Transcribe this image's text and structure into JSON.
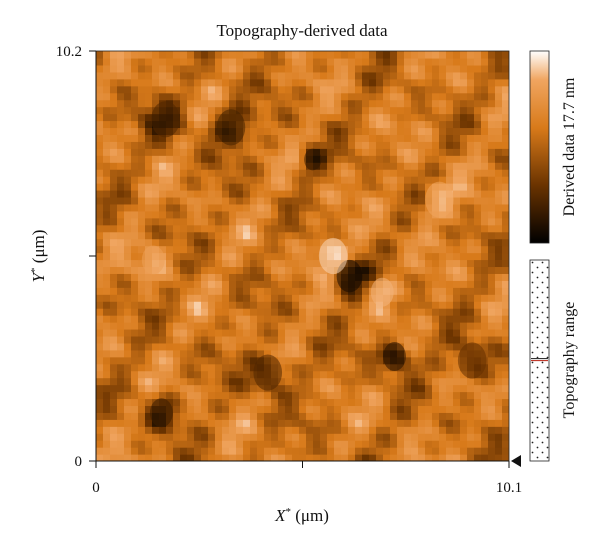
{
  "chart_data": {
    "type": "heatmap",
    "title": "Topography-derived data",
    "xlabel": {
      "main": "X",
      "sup": "*",
      "unit": " (μm)"
    },
    "ylabel": {
      "main": "Y",
      "sup": "*",
      "unit": " (μm)"
    },
    "xlim": [
      0,
      10.1
    ],
    "ylim": [
      0,
      10.2
    ],
    "x_ticks": [
      "0",
      "10.1"
    ],
    "y_ticks": [
      "0",
      "10.2"
    ],
    "colorbar": {
      "label": "Derived data 17.7 nm",
      "min": 0,
      "max": 17.7,
      "unit": "nm",
      "colors": [
        "#000000",
        "#6a3300",
        "#d87a1a",
        "#f0a560",
        "#ffffff"
      ]
    },
    "range_bar": {
      "label": "Topography range",
      "marker_fraction": 0.44,
      "marker_color": "#c0392b"
    },
    "features": [
      {
        "x": 6.2,
        "y": 4.6,
        "value": 1.0,
        "r": 0.45
      },
      {
        "x": 7.3,
        "y": 2.6,
        "value": 2.0,
        "r": 0.4
      },
      {
        "x": 5.3,
        "y": 7.5,
        "value": 2.5,
        "r": 0.3
      },
      {
        "x": 3.3,
        "y": 8.3,
        "value": 3.5,
        "r": 0.5
      },
      {
        "x": 1.7,
        "y": 8.5,
        "value": 4.0,
        "r": 0.5
      },
      {
        "x": 5.8,
        "y": 5.1,
        "value": 16.5,
        "r": 0.5
      },
      {
        "x": 7.0,
        "y": 4.2,
        "value": 15.5,
        "r": 0.4
      },
      {
        "x": 1.4,
        "y": 5.0,
        "value": 14.5,
        "r": 0.4
      },
      {
        "x": 1.6,
        "y": 1.2,
        "value": 3.0,
        "r": 0.4
      },
      {
        "x": 8.4,
        "y": 6.5,
        "value": 15.0,
        "r": 0.5
      },
      {
        "x": 9.2,
        "y": 2.5,
        "value": 5.0,
        "r": 0.5
      },
      {
        "x": 4.2,
        "y": 2.2,
        "value": 4.0,
        "r": 0.5
      }
    ]
  }
}
